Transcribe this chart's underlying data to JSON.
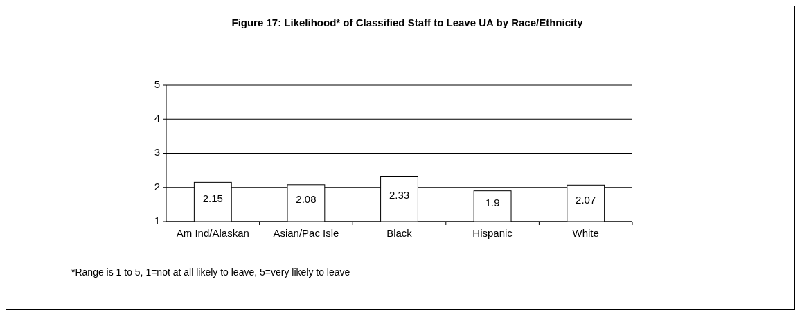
{
  "chart_data": {
    "type": "bar",
    "title": "Figure 17:  Likelihood* of Classified Staff to Leave UA by Race/Ethnicity",
    "categories": [
      "Am Ind/Alaskan",
      "Asian/Pac Isle",
      "Black",
      "Hispanic",
      "White"
    ],
    "values": [
      2.15,
      2.08,
      2.33,
      1.9,
      2.07
    ],
    "color": "#ffffff",
    "ylim": [
      1,
      5
    ],
    "yticks": [
      1,
      2,
      3,
      4,
      5
    ],
    "grid": "y",
    "data_labels": true,
    "annotations": [
      "*Range is 1 to 5, 1=not at all likely to leave, 5=very likely to leave"
    ]
  }
}
